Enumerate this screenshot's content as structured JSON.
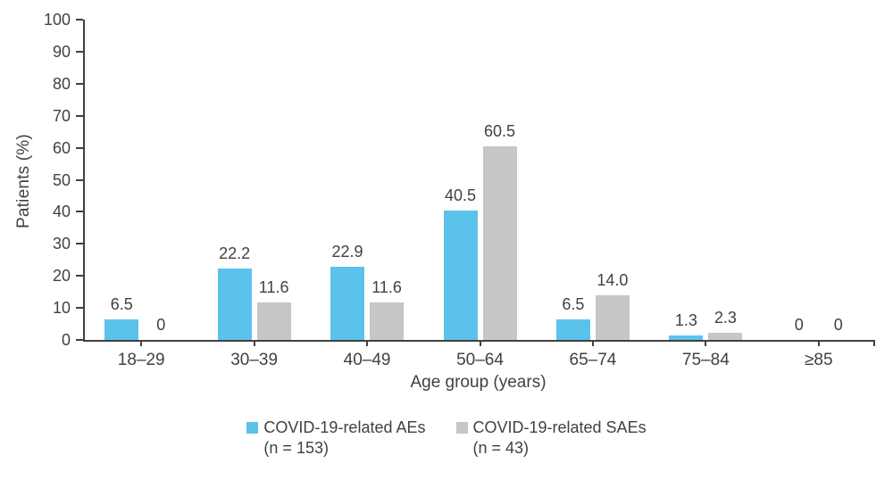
{
  "chart_data": {
    "type": "bar",
    "title": "",
    "xlabel": "Age group (years)",
    "ylabel": "Patients (%)",
    "ylim": [
      0,
      100
    ],
    "ytick_step": 10,
    "grid": false,
    "legend_position": "bottom-center",
    "categories": [
      "18–29",
      "30–39",
      "40–49",
      "50–64",
      "65–74",
      "75–84",
      "≥85"
    ],
    "series": [
      {
        "name": "COVID-19-related AEs",
        "n_label": "(n = 153)",
        "color": "#5BC2EC",
        "values": [
          6.5,
          22.2,
          22.9,
          40.5,
          6.5,
          1.3,
          0
        ],
        "labels": [
          "6.5",
          "22.2",
          "22.9",
          "40.5",
          "6.5",
          "1.3",
          "0"
        ]
      },
      {
        "name": "COVID-19-related SAEs",
        "n_label": "(n = 43)",
        "color": "#C6C6C6",
        "values": [
          0,
          11.6,
          11.6,
          60.5,
          14.0,
          2.3,
          0
        ],
        "labels": [
          "0",
          "11.6",
          "11.6",
          "60.5",
          "14.0",
          "2.3",
          "0"
        ]
      }
    ]
  },
  "colors": {
    "axis": "#414141",
    "text": "#414141"
  }
}
